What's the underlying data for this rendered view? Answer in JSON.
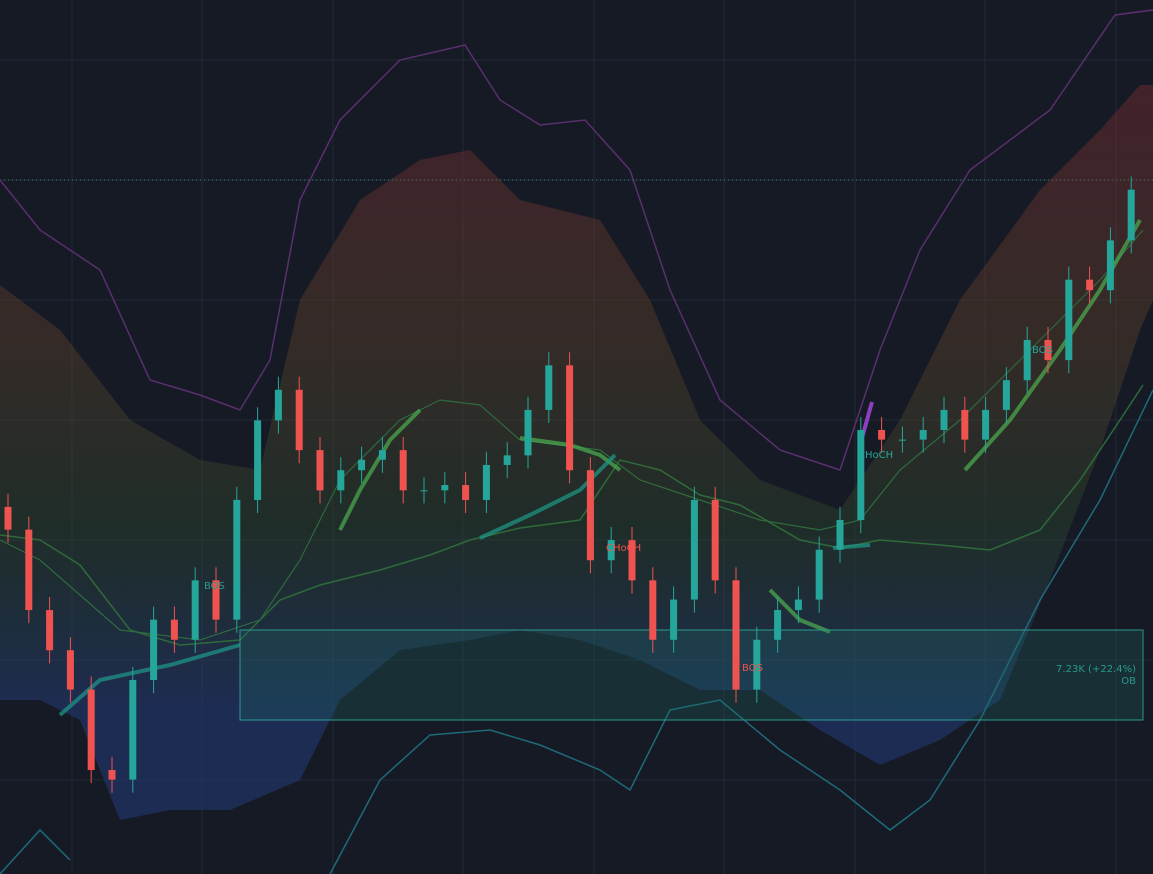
{
  "chart_data": {
    "type": "candlestick",
    "ylim": [
      0,
      100
    ],
    "up_color": "#26a69a",
    "down_color": "#ef5350",
    "open": [
      42.0,
      39.4,
      30.2,
      25.6,
      21.1,
      11.9,
      10.8,
      22.2,
      29.1,
      26.8,
      33.6,
      29.1,
      42.8,
      51.9,
      55.4,
      48.5,
      43.9,
      46.2,
      47.4,
      48.5,
      43.9,
      43.9,
      44.5,
      42.8,
      46.8,
      47.9,
      53.1,
      58.2,
      46.2,
      35.9,
      38.2,
      33.6,
      26.8,
      31.4,
      42.8,
      33.6,
      21.1,
      26.8,
      30.2,
      31.4,
      37.1,
      40.5,
      50.8,
      49.7,
      49.7,
      50.8,
      53.1,
      49.7,
      53.1,
      56.5,
      61.1,
      58.8,
      68.0,
      66.8,
      72.5
    ],
    "high": [
      43.5,
      40.9,
      31.7,
      27.1,
      22.6,
      13.4,
      23.7,
      30.6,
      30.6,
      35.1,
      35.1,
      44.3,
      53.4,
      56.9,
      56.9,
      50.0,
      47.7,
      48.9,
      50.0,
      50.0,
      45.4,
      46.0,
      46.0,
      48.3,
      49.4,
      54.6,
      59.7,
      59.7,
      47.7,
      39.7,
      39.7,
      35.1,
      32.9,
      44.3,
      44.3,
      35.1,
      28.3,
      31.7,
      32.9,
      38.6,
      42.0,
      52.3,
      52.3,
      51.2,
      52.3,
      54.6,
      54.6,
      54.6,
      58.0,
      62.6,
      62.6,
      69.5,
      69.5,
      74.0,
      79.8
    ],
    "low": [
      37.9,
      28.7,
      24.1,
      19.6,
      10.4,
      9.3,
      9.3,
      20.7,
      25.3,
      25.3,
      27.6,
      27.6,
      41.3,
      50.4,
      47.0,
      42.4,
      42.4,
      44.7,
      45.9,
      42.4,
      42.4,
      42.4,
      41.3,
      41.3,
      45.3,
      46.4,
      51.6,
      44.7,
      34.4,
      34.4,
      32.1,
      25.3,
      25.3,
      29.9,
      32.1,
      19.6,
      19.6,
      25.3,
      28.7,
      29.9,
      35.6,
      39.0,
      48.2,
      48.2,
      48.2,
      49.3,
      48.2,
      48.2,
      51.6,
      55.0,
      57.3,
      57.3,
      65.3,
      65.3,
      71.0
    ],
    "close": [
      39.4,
      30.2,
      25.6,
      21.1,
      11.9,
      10.8,
      22.2,
      29.1,
      26.8,
      33.6,
      29.1,
      42.8,
      51.9,
      55.4,
      48.5,
      43.9,
      46.2,
      47.4,
      48.5,
      43.9,
      43.9,
      44.5,
      42.8,
      46.8,
      47.9,
      53.1,
      58.2,
      46.2,
      35.9,
      38.2,
      33.6,
      26.8,
      31.4,
      42.8,
      33.6,
      21.1,
      26.8,
      30.2,
      31.4,
      37.1,
      40.5,
      50.8,
      49.7,
      49.7,
      50.8,
      53.1,
      49.7,
      53.1,
      56.5,
      61.1,
      58.8,
      68.0,
      66.8,
      72.5,
      78.3
    ],
    "annotations": [
      "BOS",
      "CHoCH",
      "BOS",
      "CHoCH",
      "BOS",
      "7.23K (+22.4%)",
      "OB"
    ]
  }
}
